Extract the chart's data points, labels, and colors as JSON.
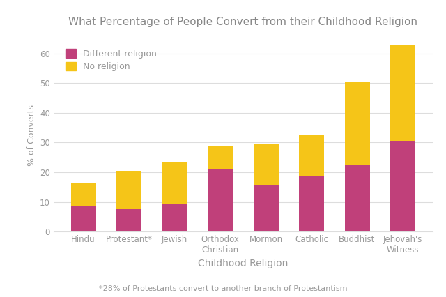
{
  "categories": [
    "Hindu",
    "Protestant*",
    "Jewish",
    "Orthodox\nChristian",
    "Mormon",
    "Catholic",
    "Buddhist",
    "Jehovah's\nWitness"
  ],
  "different_religion": [
    8.5,
    7.5,
    9.5,
    21,
    15.5,
    18.5,
    22.5,
    30.5
  ],
  "no_religion": [
    8,
    13,
    14,
    8,
    14,
    14,
    28,
    32.5
  ],
  "bar_color_diff": "#c0407a",
  "bar_color_norelig": "#f5c518",
  "title": "What Percentage of People Convert from their Childhood Religion",
  "xlabel": "Childhood Religion",
  "ylabel": "% of Converts",
  "footnote": "*28% of Protestants convert to another branch of Protestantism",
  "legend_diff": "Different religion",
  "legend_norelig": "No religion",
  "ylim": [
    0,
    65
  ],
  "yticks": [
    0,
    10,
    20,
    30,
    40,
    50,
    60
  ],
  "background_color": "#ffffff",
  "title_color": "#888888",
  "axis_color": "#999999",
  "grid_color": "#dddddd"
}
